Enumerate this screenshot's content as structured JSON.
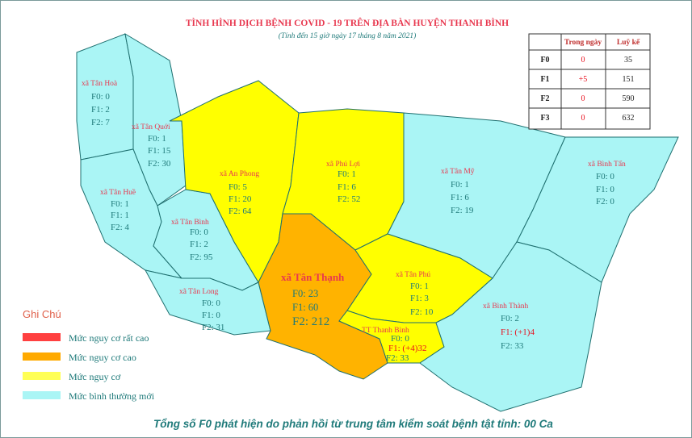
{
  "header": {
    "title": "TÌNH HÌNH DỊCH BỆNH COVID - 19 TRÊN ĐỊA BÀN HUYỆN THANH BÌNH",
    "subtitle": "(Tính đến 15 giờ ngày 17 tháng 8 năm 2021)"
  },
  "table": {
    "columns": [
      "Trong ngày",
      "Luỹ kế"
    ],
    "rows": [
      [
        "F0",
        "0",
        "35"
      ],
      [
        "F1",
        "+5",
        "151"
      ],
      [
        "F2",
        "0",
        "590"
      ],
      [
        "F3",
        "0",
        "632"
      ]
    ]
  },
  "regions": [
    {
      "name": "xã Tân Hoà",
      "lines": [
        "F0: 0",
        "F1: 2",
        "F2: 7"
      ]
    },
    {
      "name": "xã Tân Quới",
      "lines": [
        "F0: 1",
        "F1: 15",
        "F2: 30"
      ]
    },
    {
      "name": "xã Tân Huề",
      "lines": [
        "F0: 1",
        "F1: 1",
        "F2: 4"
      ]
    },
    {
      "name": "xã Tân Bình",
      "lines": [
        "F0: 0",
        "F1: 2",
        "F2: 95"
      ]
    },
    {
      "name": "xã Tân Long",
      "lines": [
        "F0: 0",
        "F1: 0",
        "F2: 31"
      ]
    },
    {
      "name": "xã An Phong",
      "lines": [
        "F0: 5",
        "F1: 20",
        "F2: 64"
      ]
    },
    {
      "name": "xã Phú Lợi",
      "lines": [
        "F0: 1",
        "F1: 6",
        "F2: 52"
      ]
    },
    {
      "name": "xã Tân Mỹ",
      "lines": [
        "F0: 1",
        "F1: 6",
        "F2: 19"
      ]
    },
    {
      "name": "xã Bình Tấn",
      "lines": [
        "F0: 0",
        "F1: 0",
        "F2: 0"
      ]
    },
    {
      "name": "xã Tân Thạnh",
      "lines": [
        "F0: 23",
        "F1: 60",
        "F2: 212"
      ]
    },
    {
      "name": "xã Tân Phú",
      "lines": [
        "F0: 1",
        "F1: 3",
        "F2: 10"
      ]
    },
    {
      "name": "TT Thanh Bình",
      "lines": [
        "F0: 0",
        "F1: (+4)32",
        "F2: 33"
      ]
    },
    {
      "name": "xã Bình Thành",
      "lines": [
        "F0: 2",
        "F1: (+1)4",
        "F2: 33"
      ]
    }
  ],
  "legend": {
    "title": "Ghi Chú",
    "items": [
      {
        "label": "Mức  nguy cơ rất cao",
        "color": "#ff4040"
      },
      {
        "label": "Mức  nguy cơ cao",
        "color": "#ffaa00"
      },
      {
        "label": "Mức  nguy cơ",
        "color": "#ffff55"
      },
      {
        "label": "Mức  bình thường mới",
        "color": "#aaf5f5"
      }
    ]
  },
  "footer": "Tổng số F0 phát hiện do phản hồi từ trung tâm kiểm soát bệnh tật tỉnh: 00 Ca"
}
